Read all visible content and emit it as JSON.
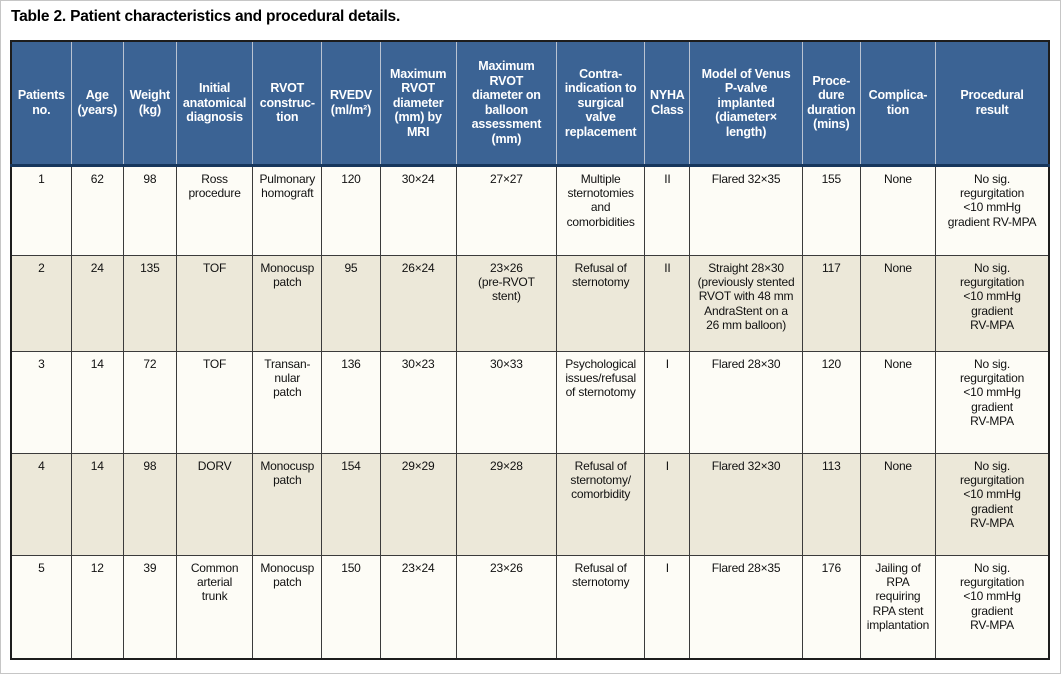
{
  "title": "Table 2. Patient characteristics and procedural details.",
  "colors": {
    "header_background": "#3b6394",
    "header_text": "#ffffff",
    "header_divider": "#b9c3d2",
    "header_bottom_rule": "#16365c",
    "row_white": "#fdfcf6",
    "row_cream": "#ece8d9",
    "cell_border": "#3b3b3b",
    "outer_border": "#1d1d1d"
  },
  "table": {
    "columns": [
      "Patients\nno.",
      "Age\n(years)",
      "Weight\n(kg)",
      "Initial\nanatomical\ndiagnosis",
      "RVOT\nconstruc-\ntion",
      "RVEDV\n(ml/m²)",
      "Maximum\nRVOT\ndiameter\n(mm) by\nMRI",
      "Maximum\nRVOT\ndiameter on\nballoon\nassessment\n(mm)",
      "Contra-\nindication to\nsurgical\nvalve\nreplacement",
      "NYHA\nClass",
      "Model of Venus\nP-valve\nimplanted\n(diameter×\nlength)",
      "Proce-\ndure\nduration\n(mins)",
      "Complica-\ntion",
      "Procedural\nresult"
    ],
    "rows": [
      [
        "1",
        "62",
        "98",
        "Ross\nprocedure",
        "Pulmonary\nhomograft",
        "120",
        "30×24",
        "27×27",
        "Multiple\nsternotomies\nand\ncomorbidities",
        "II",
        "Flared 32×35",
        "155",
        "None",
        "No sig.\nregurgitation\n<10 mmHg\ngradient RV-MPA"
      ],
      [
        "2",
        "24",
        "135",
        "TOF",
        "Monocusp\npatch",
        "95",
        "26×24",
        "23×26\n(pre-RVOT\nstent)",
        "Refusal of\nsternotomy",
        "II",
        "Straight 28×30\n(previously stented\nRVOT with 48 mm\nAndraStent on a\n26 mm balloon)",
        "117",
        "None",
        "No sig.\nregurgitation\n<10 mmHg\ngradient\nRV-MPA"
      ],
      [
        "3",
        "14",
        "72",
        "TOF",
        "Transan-\nnular\npatch",
        "136",
        "30×23",
        "30×33",
        "Psychological\nissues/refusal\nof sternotomy",
        "I",
        "Flared 28×30",
        "120",
        "None",
        "No sig.\nregurgitation\n<10 mmHg\ngradient\nRV-MPA"
      ],
      [
        "4",
        "14",
        "98",
        "DORV",
        "Monocusp\npatch",
        "154",
        "29×29",
        "29×28",
        "Refusal of\nsternotomy/\ncomorbidity",
        "I",
        "Flared 32×30",
        "113",
        "None",
        "No sig.\nregurgitation\n<10 mmHg\ngradient\nRV-MPA"
      ],
      [
        "5",
        "12",
        "39",
        "Common\narterial\ntrunk",
        "Monocusp\npatch",
        "150",
        "23×24",
        "23×26",
        "Refusal of\nsternotomy",
        "I",
        "Flared 28×35",
        "176",
        "Jailing of\nRPA\nrequiring\nRPA stent\nimplantation",
        "No sig.\nregurgitation\n<10 mmHg\ngradient\nRV-MPA"
      ]
    ]
  }
}
